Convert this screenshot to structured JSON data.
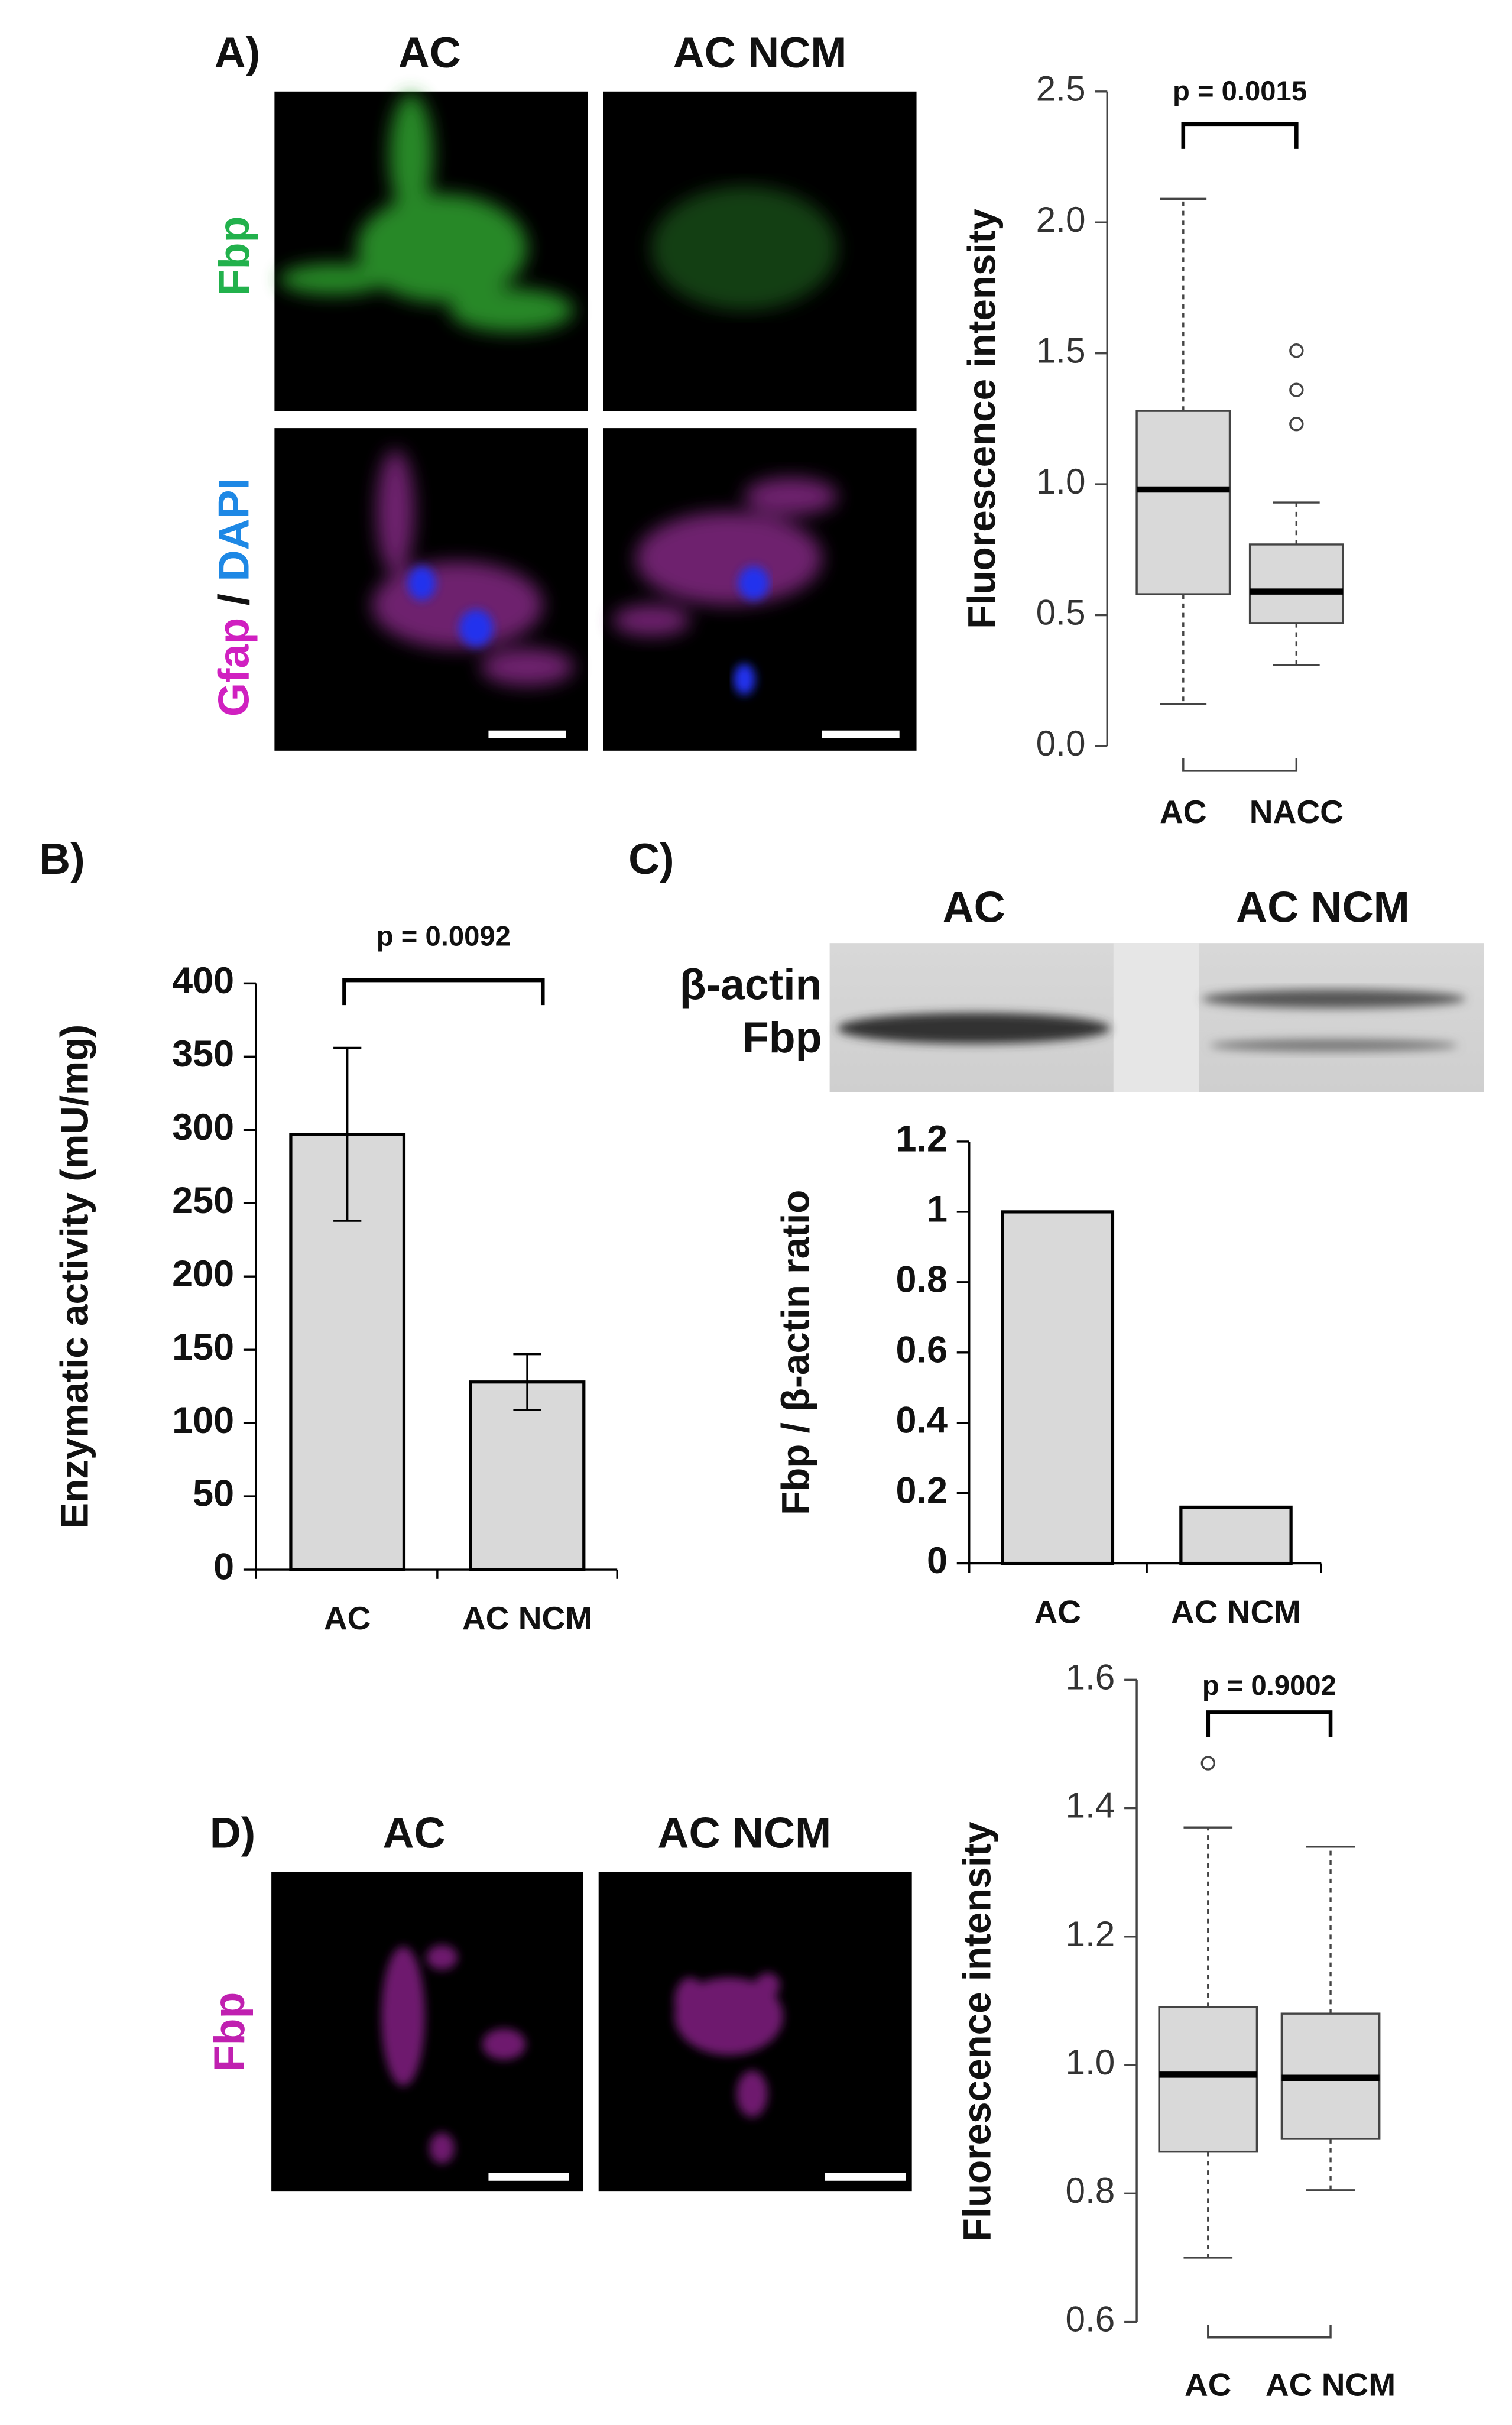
{
  "panels": {
    "a": "A)",
    "b": "B)",
    "c": "C)",
    "d": "D)"
  },
  "micrographs_a": {
    "columns": [
      "AC",
      "AC NCM"
    ],
    "rows": [
      [
        "Fbp"
      ],
      [
        "Gfap",
        "/",
        "DAPI"
      ]
    ]
  },
  "blot": {
    "columns": [
      "AC",
      "AC NCM"
    ],
    "bands": [
      "β-actin",
      "Fbp"
    ]
  },
  "micrographs_d": {
    "columns": [
      "AC",
      "AC NCM"
    ],
    "row": "Fbp"
  },
  "chart_data": [
    {
      "type": "box",
      "ylabel": "Fluorescence intensity",
      "categories": [
        "AC",
        "NACC"
      ],
      "boxes": [
        {
          "low": 0.16,
          "q1": 0.58,
          "median": 0.98,
          "q3": 1.28,
          "high": 2.09,
          "outliers": []
        },
        {
          "low": 0.31,
          "q1": 0.47,
          "median": 0.59,
          "q3": 0.77,
          "high": 0.93,
          "outliers": [
            1.23,
            1.36,
            1.51
          ]
        }
      ],
      "color": "#d9d9d9",
      "annotation": "p = 0.0015",
      "ylim": [
        0,
        2.5
      ],
      "yticks": [
        {
          "value": 0,
          "label": "0.0"
        },
        {
          "value": 0.5,
          "label": "0.5"
        },
        {
          "value": 1,
          "label": "1.0"
        },
        {
          "value": 1.5,
          "label": "1.5"
        },
        {
          "value": 2,
          "label": "2.0"
        },
        2.5
      ]
    },
    {
      "type": "bar",
      "ylabel": "Enzymatic activity (mU/mg)",
      "categories": [
        "AC",
        "AC NCM"
      ],
      "values": [
        297,
        128
      ],
      "errors": [
        59,
        19
      ],
      "color": "#d9d9d9",
      "annotation": "p = 0.0092",
      "ylim": [
        0,
        400
      ],
      "yticks": [
        0,
        50,
        100,
        150,
        200,
        250,
        300,
        350,
        400
      ]
    },
    {
      "type": "bar",
      "ylabel": "Fbp / β-actin ratio",
      "categories": [
        "AC",
        "AC NCM"
      ],
      "values": [
        1,
        0.16
      ],
      "color": "#d9d9d9",
      "ylim": [
        0,
        1.2
      ],
      "yticks": [
        0,
        0.2,
        0.4,
        0.6,
        0.8,
        1,
        1.2
      ]
    },
    {
      "type": "box",
      "ylabel": "Fluorescence intensity",
      "categories": [
        "AC",
        "AC NCM"
      ],
      "boxes": [
        {
          "low": 0.7,
          "q1": 0.865,
          "median": 0.985,
          "q3": 1.09,
          "high": 1.37,
          "outliers": [
            1.47
          ]
        },
        {
          "low": 0.805,
          "q1": 0.885,
          "median": 0.98,
          "q3": 1.08,
          "high": 1.34,
          "outliers": []
        }
      ],
      "color": "#d9d9d9",
      "annotation": "p = 0.9002",
      "ylim": [
        0.6,
        1.6
      ],
      "yticks": [
        0.6,
        0.8,
        {
          "value": 1,
          "label": "1.0"
        },
        1.2,
        1.4,
        1.6
      ]
    }
  ]
}
